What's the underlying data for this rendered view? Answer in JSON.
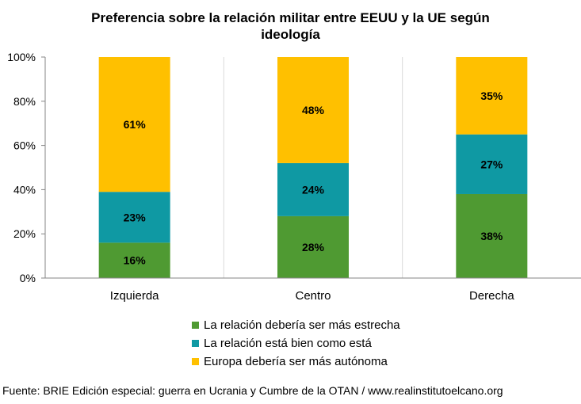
{
  "chart_data": {
    "type": "bar",
    "stacked": true,
    "title_line1": "Preferencia sobre la relación militar entre EEUU y la UE según",
    "title_line2": "ideología",
    "categories": [
      "Izquierda",
      "Centro",
      "Derecha"
    ],
    "series": [
      {
        "name": "La relación debería ser más estrecha",
        "values": [
          16,
          28,
          38
        ],
        "color": "#4f9a32",
        "labels": [
          "16%",
          "28%",
          "38%"
        ]
      },
      {
        "name": "La relación está bien como está",
        "values": [
          23,
          24,
          27
        ],
        "color": "#0f99a3",
        "labels": [
          "23%",
          "24%",
          "27%"
        ]
      },
      {
        "name": "Europa debería ser más autónoma",
        "values": [
          61,
          48,
          35
        ],
        "color": "#ffc000",
        "labels": [
          "61%",
          "48%",
          "35%"
        ]
      }
    ],
    "yticks": [
      "0%",
      "20%",
      "40%",
      "60%",
      "80%",
      "100%"
    ],
    "ylim": [
      0,
      100
    ],
    "legend_position": "bottom",
    "grid": false
  },
  "source": "Fuente: BRIE Edición especial: guerra en Ucrania y Cumbre de la OTAN / www.realinstitutoelcano.org"
}
